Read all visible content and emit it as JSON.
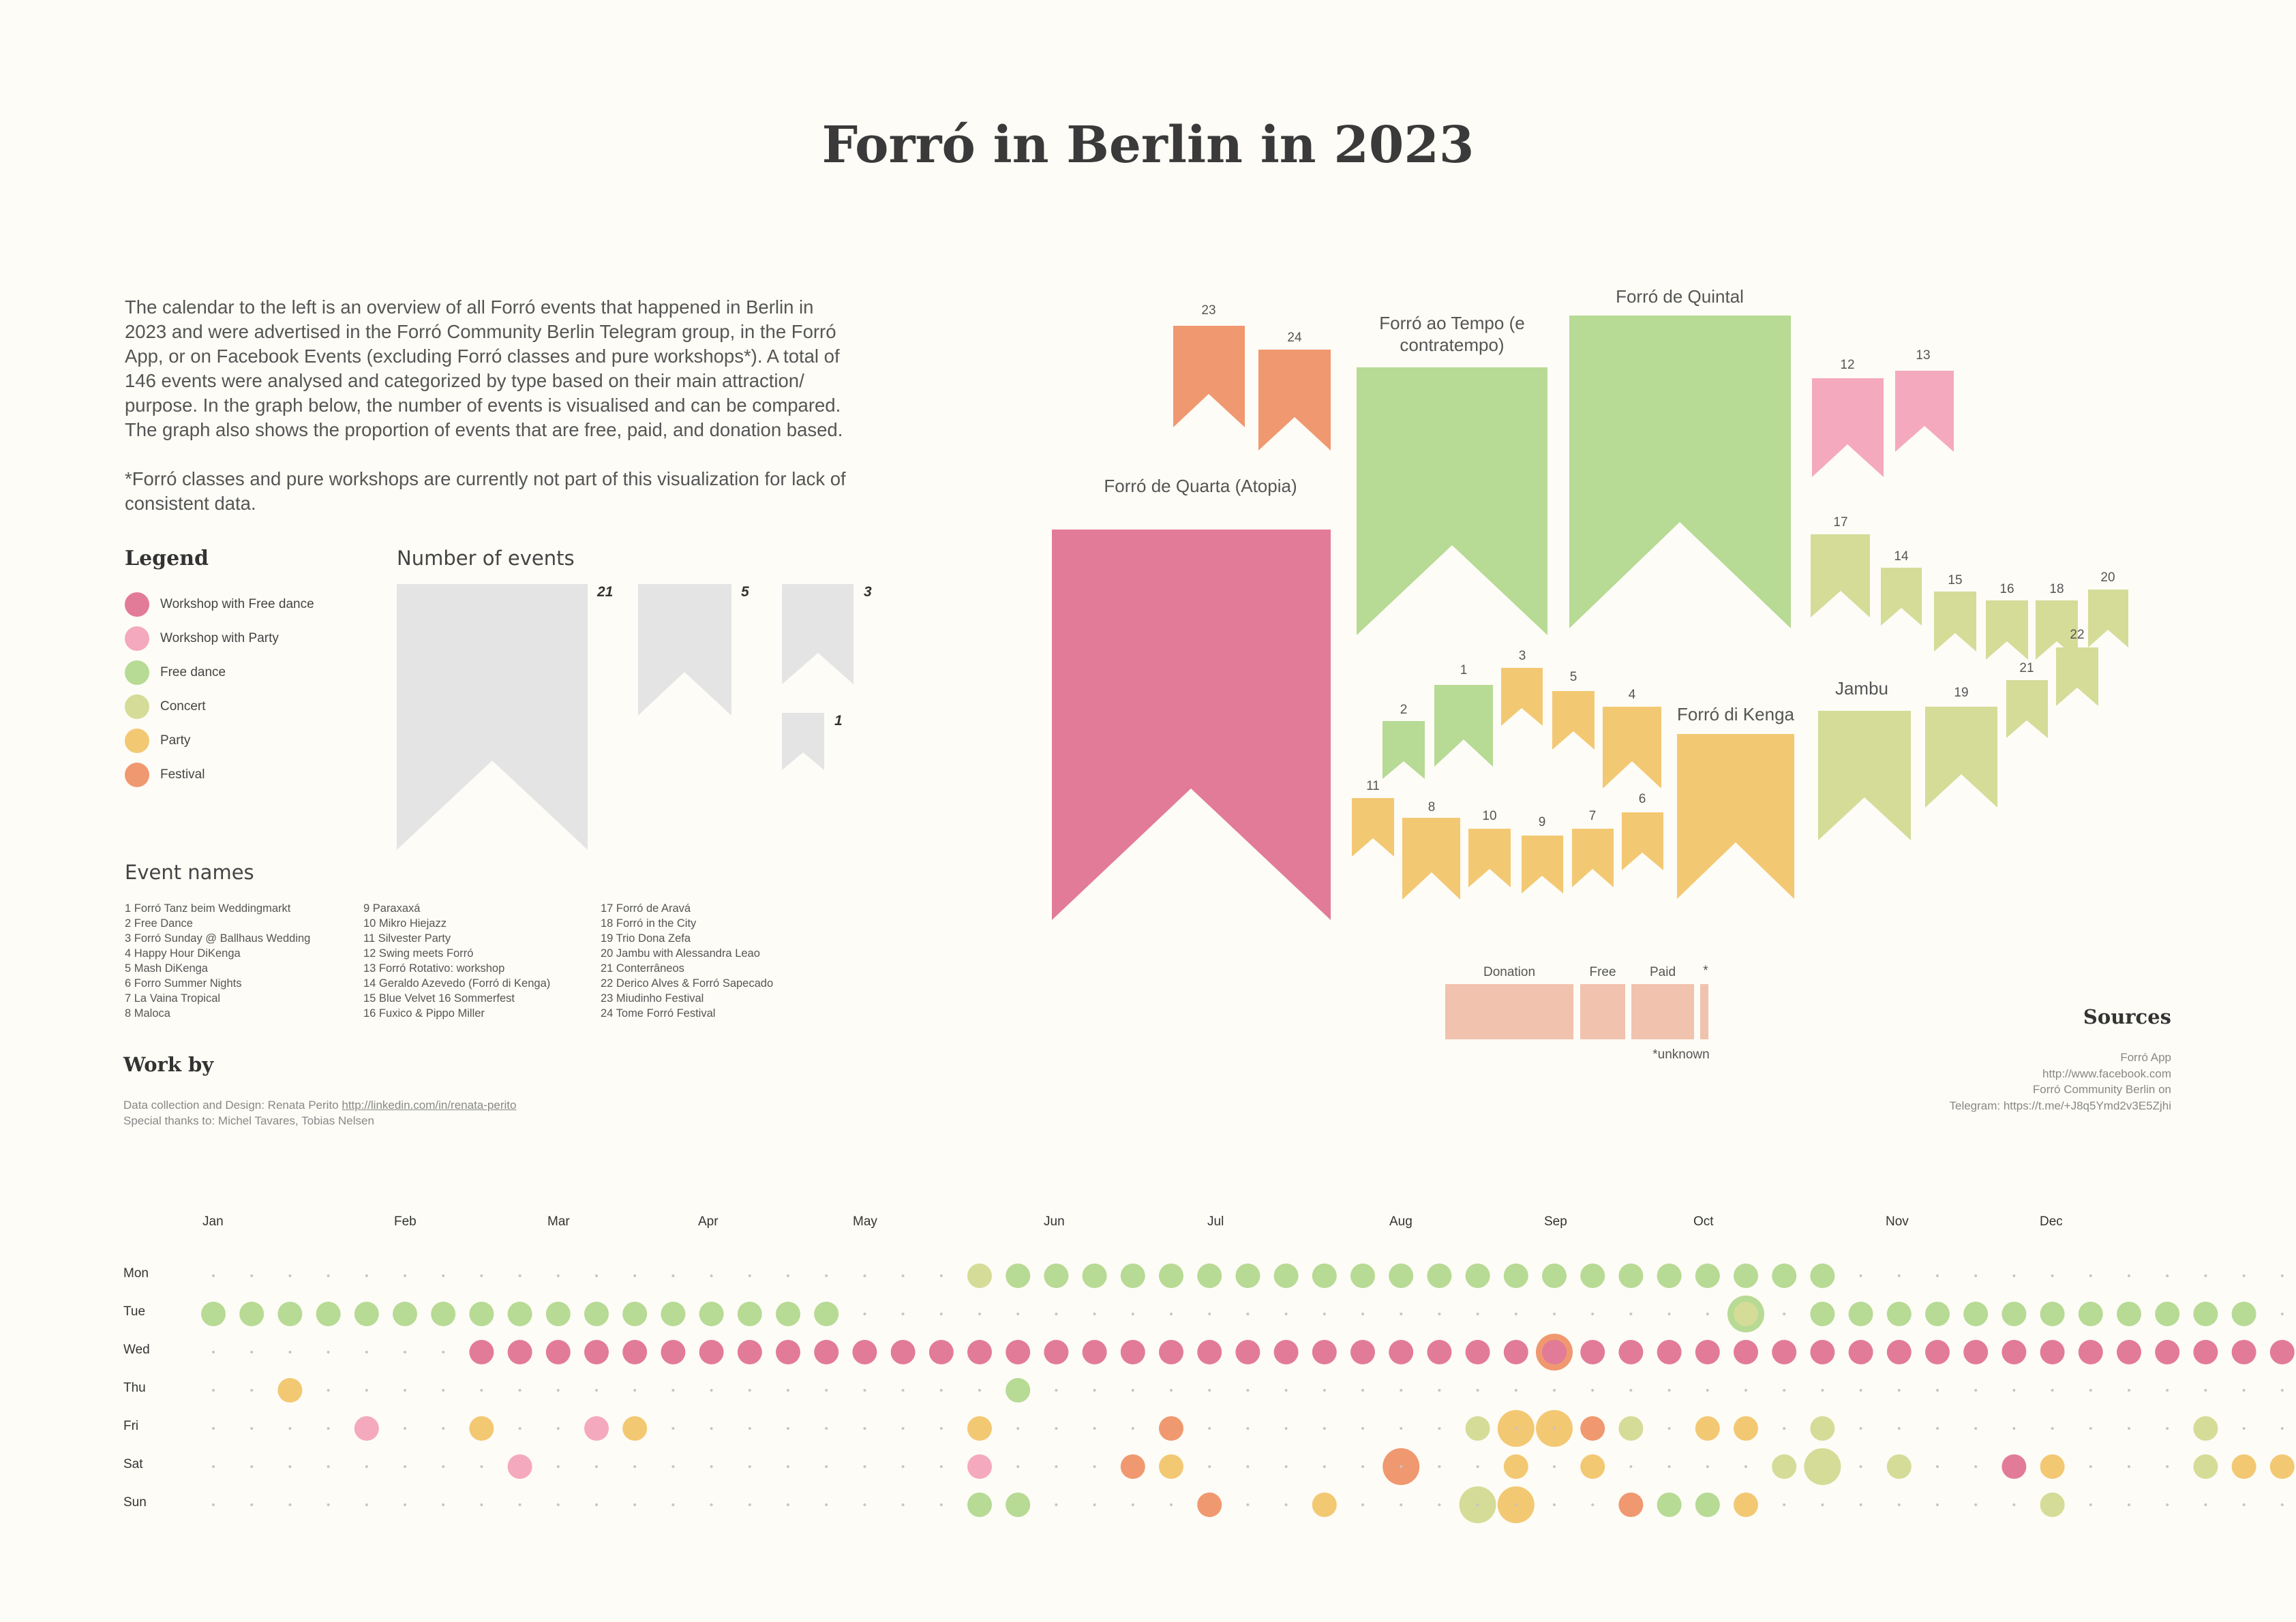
{
  "title": "Forró in Berlin in 2023",
  "intro": [
    "The calendar to the left is an overview of all Forró events that happened in Berlin in 2023 and were advertised in the Forró Community Berlin Telegram group, in the Forró App, or on Facebook Events (excluding Forró classes and pure workshops*). A total of 146 events were analysed and categorized by type based on their main attraction/ purpose. In the graph below, the number of events is visualised and can be compared. The graph also shows the proportion of events that are free, paid, and donation based.",
    "*Forró classes and pure workshops are currently not part of this visualization for lack of consistent data."
  ],
  "colors": {
    "workshop_free_dance": "#e27b97",
    "workshop_party": "#f4a9bf",
    "free_dance": "#b7da94",
    "concert": "#d4dc98",
    "party": "#f3c873",
    "festival": "#f09870",
    "empty_dot": "#c5c5c5",
    "legend_flag": "#e4e4e4",
    "payment": "#f1c2ad"
  },
  "legend": {
    "title": "Legend",
    "items": [
      {
        "label": "Workshop with Free dance",
        "color": "#e27b97"
      },
      {
        "label": "Workshop with Party",
        "color": "#f4a9bf"
      },
      {
        "label": "Free dance",
        "color": "#b7da94"
      },
      {
        "label": "Concert",
        "color": "#d4dc98"
      },
      {
        "label": "Party",
        "color": "#f3c873"
      },
      {
        "label": "Festival",
        "color": "#f09870"
      }
    ]
  },
  "number_of_events": {
    "title": "Number of events",
    "examples": [
      "21",
      "5",
      "3",
      "1"
    ]
  },
  "event_names": {
    "title": "Event names",
    "columns": [
      [
        "1 Forró Tanz beim Weddingmarkt",
        "2 Free Dance",
        "3 Forró Sunday @ Ballhaus Wedding",
        "4 Happy Hour DiKenga",
        "5 Mash DiKenga",
        "6 Forro Summer Nights",
        "7 La Vaina Tropical",
        "8 Maloca"
      ],
      [
        "9 Paraxaxá",
        "10 Mikro Hiejazz",
        "11 Silvester Party",
        "12 Swing meets Forró",
        "13 Forró Rotativo: workshop",
        "14 Geraldo Azevedo (Forró di Kenga)",
        "15 Blue Velvet 16 Sommerfest",
        "16 Fuxico & Pippo Miller"
      ],
      [
        "17 Forró de Aravá",
        "18 Forró in the City",
        "19 Trio Dona Zefa",
        "20 Jambu with Alessandra Leao",
        "21 Conterrâneos",
        "22 Derico Alves & Forró Sapecado",
        "23 Miudinho Festival",
        "24 Tome Forró Festival"
      ]
    ]
  },
  "work_by": {
    "title": "Work by",
    "line1_prefix": "Data collection and Design: Renata Perito ",
    "line1_link": "http://linkedin.com/in/renata-perito",
    "line2": "Special thanks to: Michel Tavares, Tobias Nelsen"
  },
  "sources": {
    "title": "Sources",
    "lines": [
      "Forró App",
      "http://www.facebook.com",
      "Forró Community Berlin on",
      "Telegram: https://t.me/+J8q5Ymd2v3E5Zjhi"
    ]
  },
  "chart_data": [
    {
      "type": "bar",
      "title": "",
      "named_events": [
        {
          "label": "Forró de Quarta (Atopia)",
          "category": "Workshop with Free dance"
        },
        {
          "label": "Forró ao Tempo (e contratempo)",
          "category": "Free dance"
        },
        {
          "label": "Forró de Quintal",
          "category": "Free dance"
        },
        {
          "label": "Forró di Kenga",
          "category": "Party"
        },
        {
          "label": "Jambu",
          "category": "Concert"
        }
      ],
      "numbered_events": [
        "1",
        "2",
        "3",
        "4",
        "5",
        "6",
        "7",
        "8",
        "9",
        "10",
        "11",
        "12",
        "13",
        "14",
        "15",
        "16",
        "17",
        "18",
        "19",
        "20",
        "21",
        "22",
        "23",
        "24"
      ],
      "payment": {
        "labels": [
          "Donation",
          "Free",
          "Paid",
          "*"
        ],
        "note": "*unknown"
      }
    },
    {
      "type": "heatmap",
      "title": "",
      "months": [
        "Jan",
        "Feb",
        "Mar",
        "Apr",
        "May",
        "Jun",
        "Jul",
        "Aug",
        "Sep",
        "Oct",
        "Nov",
        "Dec"
      ],
      "days": [
        "Mon",
        "Tue",
        "Wed",
        "Thu",
        "Fri",
        "Sat",
        "Sun"
      ],
      "codes": {
        "W": "Workshop with Free dance",
        "P": "Workshop with Party",
        "F": "Free dance",
        "C": "Concert",
        "Y": "Party",
        "E": "Festival",
        "-": "no event"
      },
      "rows": [
        "--------------------CFFFFFFFFFFFFFFFFFFFFFF---------------",
        "FFFFFFFFFFFFFFFFF-----------------------C-FFFFFFFFFFFF-",
        "-------WWWWWWWWWWWWWWWWWWWWWWWWWWWWWWWWWWWWWWWWWWWWWWWWWWW",
        "--Y------------------F--------------------------------------",
        "----P--Y--PY--------Y----E-------C--EC-YY-C---------C----Y",
        "--------P-----------P---EY--------Y-Y----CC-C--WY---CYY----",
        "--------------------FF----E--Y-------EFFY-------C----------Y"
      ],
      "highlights": [
        {
          "day": "Tue",
          "week": 40,
          "ring": "Free dance"
        },
        {
          "day": "Wed",
          "week": 35,
          "ring": "Festival"
        },
        {
          "day": "Fri",
          "week": 34,
          "ring": "Party"
        },
        {
          "day": "Fri",
          "week": 35,
          "ring": "Party"
        },
        {
          "day": "Sat",
          "week": 31,
          "ring": "Festival"
        },
        {
          "day": "Sat",
          "week": 42,
          "ring": "Concert"
        },
        {
          "day": "Sun",
          "week": 33,
          "ring": "Concert"
        },
        {
          "day": "Sun",
          "week": 34,
          "ring": "Party"
        }
      ]
    }
  ]
}
